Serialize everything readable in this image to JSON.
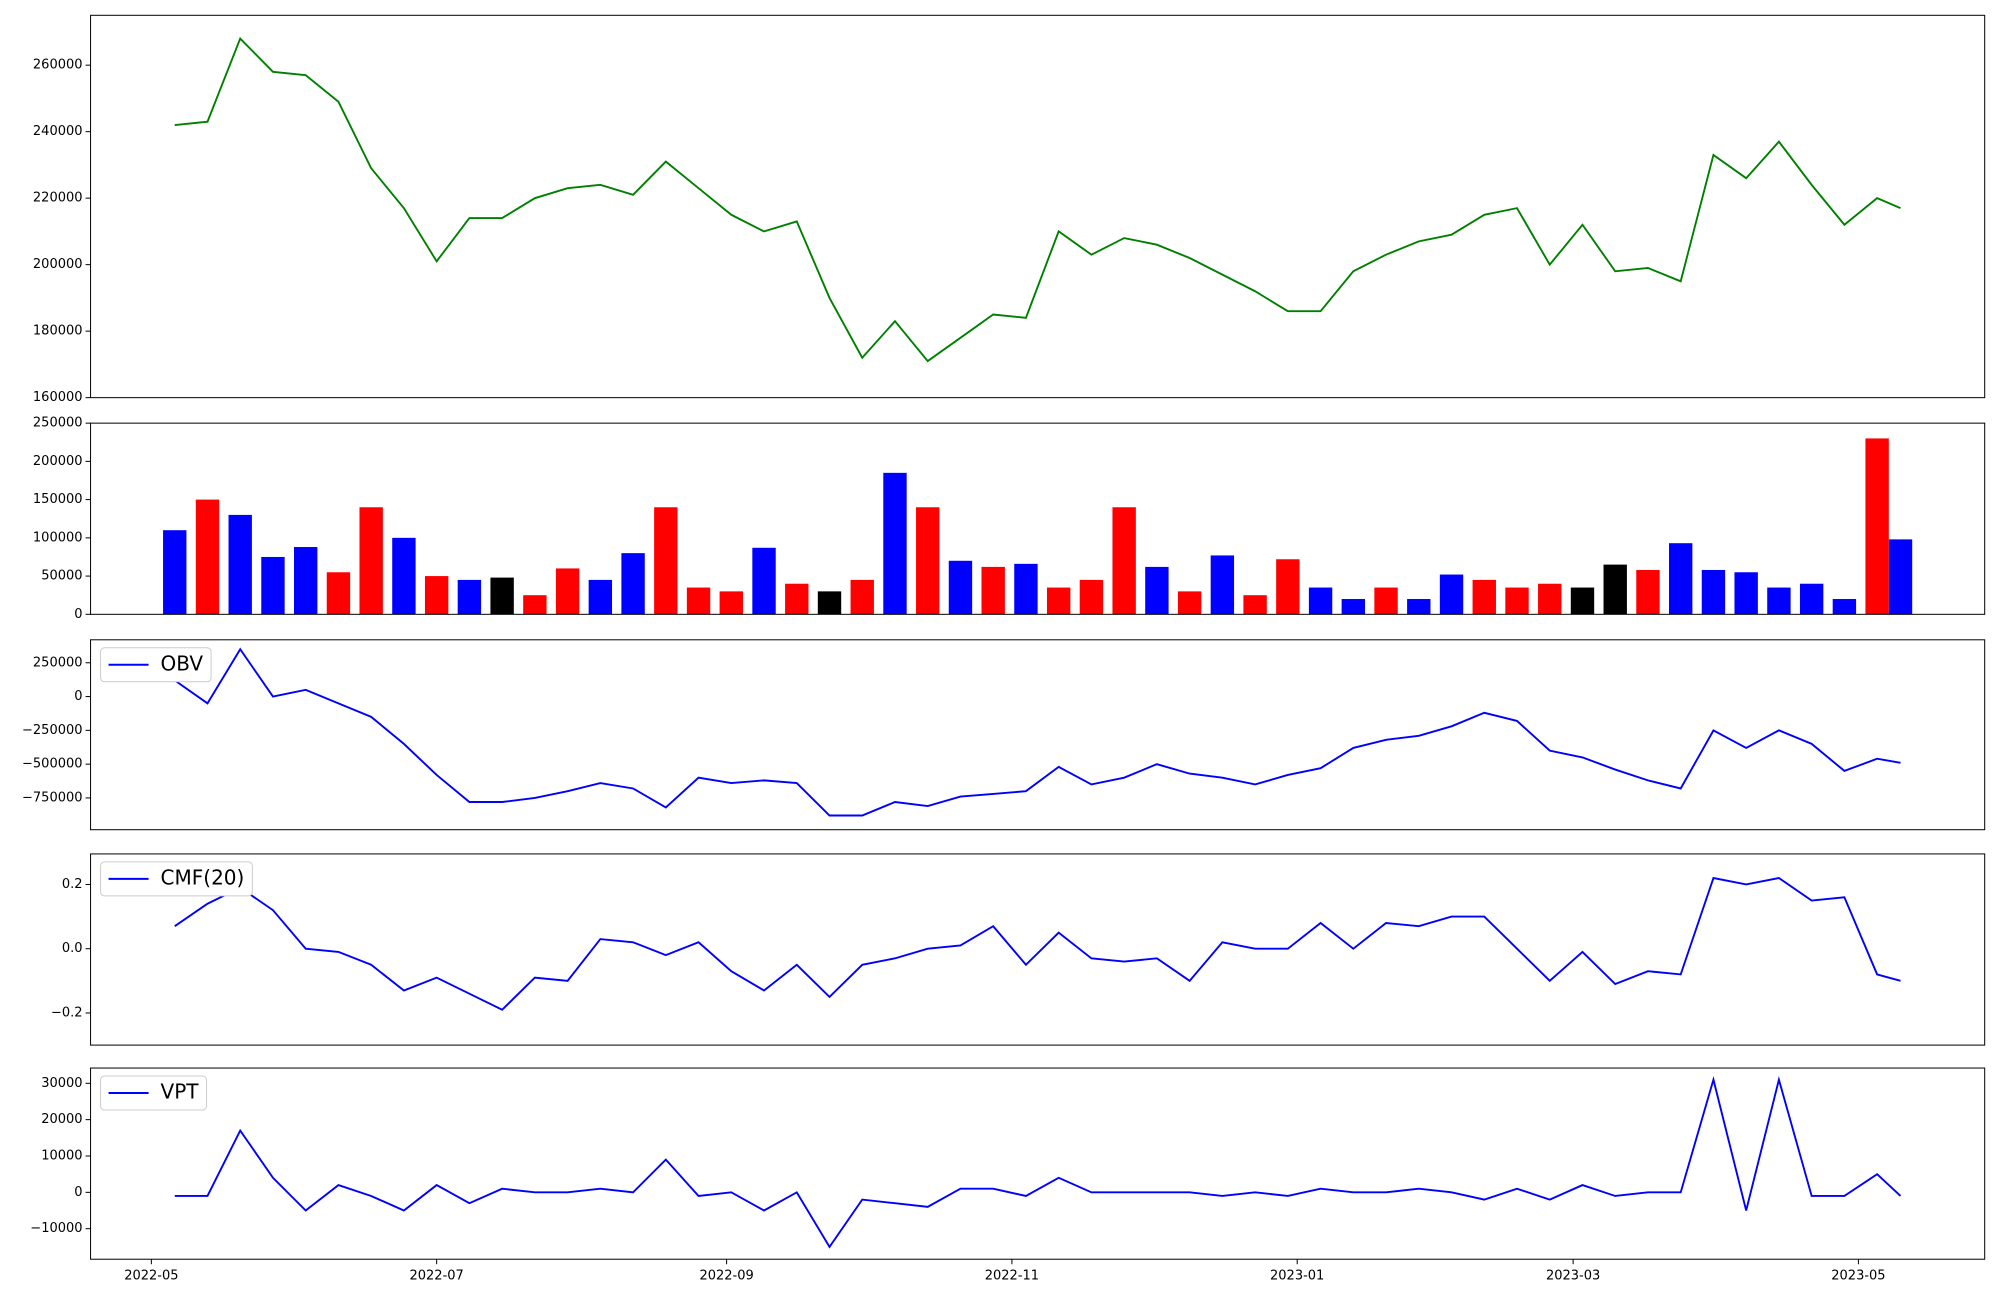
{
  "chart_data": [
    {
      "type": "line",
      "color": "green",
      "x": [
        19118,
        19125,
        19132,
        19139,
        19146,
        19153,
        19160,
        19167,
        19174,
        19181,
        19188,
        19195,
        19202,
        19209,
        19216,
        19223,
        19230,
        19237,
        19244,
        19251,
        19258,
        19265,
        19272,
        19279,
        19286,
        19293,
        19300,
        19307,
        19314,
        19321,
        19328,
        19335,
        19342,
        19349,
        19356,
        19363,
        19370,
        19377,
        19384,
        19391,
        19398,
        19405,
        19412,
        19419,
        19426,
        19433,
        19440,
        19447,
        19454,
        19461,
        19468,
        19475,
        19482,
        19487
      ],
      "values": [
        242000,
        243000,
        268000,
        258000,
        257000,
        249000,
        229000,
        217000,
        201000,
        214000,
        214000,
        220000,
        223000,
        224000,
        221000,
        231000,
        223000,
        215000,
        210000,
        213000,
        190000,
        172000,
        183000,
        171000,
        178000,
        185000,
        184000,
        210000,
        203000,
        208000,
        206000,
        202000,
        197000,
        192000,
        186000,
        186000,
        198000,
        203000,
        207000,
        209000,
        215000,
        217000,
        200000,
        212000,
        198000,
        199000,
        195000,
        233000,
        226000,
        237000,
        224000,
        212000,
        220000,
        217000
      ],
      "xlim": [
        19100,
        19505
      ],
      "ylim": [
        160000,
        275000
      ],
      "yticks": [
        160000,
        180000,
        200000,
        220000,
        240000,
        260000
      ]
    },
    {
      "type": "bar",
      "x": [
        19118,
        19125,
        19132,
        19139,
        19146,
        19153,
        19160,
        19167,
        19174,
        19181,
        19188,
        19195,
        19202,
        19209,
        19216,
        19223,
        19230,
        19237,
        19244,
        19251,
        19258,
        19265,
        19272,
        19279,
        19286,
        19293,
        19300,
        19307,
        19314,
        19321,
        19328,
        19335,
        19342,
        19349,
        19356,
        19363,
        19370,
        19377,
        19384,
        19391,
        19398,
        19405,
        19412,
        19419,
        19426,
        19433,
        19440,
        19447,
        19454,
        19461,
        19468,
        19475,
        19482,
        19487
      ],
      "values": [
        110000,
        150000,
        130000,
        75000,
        88000,
        55000,
        140000,
        100000,
        50000,
        45000,
        48000,
        25000,
        60000,
        45000,
        80000,
        140000,
        35000,
        30000,
        87000,
        40000,
        30000,
        45000,
        185000,
        140000,
        70000,
        62000,
        66000,
        35000,
        45000,
        140000,
        62000,
        30000,
        77000,
        25000,
        72000,
        35000,
        20000,
        35000,
        20000,
        52000,
        45000,
        35000,
        40000,
        35000,
        65000,
        58000,
        93000,
        58000,
        55000,
        35000,
        40000,
        20000,
        230000,
        98000
      ],
      "colors": [
        "blue",
        "red",
        "blue",
        "blue",
        "blue",
        "red",
        "red",
        "blue",
        "red",
        "blue",
        "black",
        "red",
        "red",
        "blue",
        "blue",
        "red",
        "red",
        "red",
        "blue",
        "red",
        "black",
        "red",
        "blue",
        "red",
        "blue",
        "red",
        "blue",
        "red",
        "red",
        "red",
        "blue",
        "red",
        "blue",
        "red",
        "red",
        "blue",
        "blue",
        "red",
        "blue",
        "blue",
        "red",
        "red",
        "red",
        "black",
        "black",
        "red",
        "blue",
        "blue",
        "blue",
        "blue",
        "blue",
        "blue",
        "red",
        "blue"
      ],
      "xlim": [
        19100,
        19505
      ],
      "ylim": [
        0,
        250000
      ],
      "yticks": [
        0,
        50000,
        100000,
        150000,
        200000,
        250000
      ]
    },
    {
      "type": "line",
      "legend": "upper left",
      "x": [
        19118,
        19125,
        19132,
        19139,
        19146,
        19153,
        19160,
        19167,
        19174,
        19181,
        19188,
        19195,
        19202,
        19209,
        19216,
        19223,
        19230,
        19237,
        19244,
        19251,
        19258,
        19265,
        19272,
        19279,
        19286,
        19293,
        19300,
        19307,
        19314,
        19321,
        19328,
        19335,
        19342,
        19349,
        19356,
        19363,
        19370,
        19377,
        19384,
        19391,
        19398,
        19405,
        19412,
        19419,
        19426,
        19433,
        19440,
        19447,
        19454,
        19461,
        19468,
        19475,
        19482,
        19487
      ],
      "series": [
        {
          "name": "OBV",
          "color": "blue",
          "values": [
            120000,
            -50000,
            350000,
            0,
            50000,
            -50000,
            -150000,
            -350000,
            -580000,
            -780000,
            -780000,
            -750000,
            -700000,
            -640000,
            -680000,
            -820000,
            -600000,
            -640000,
            -620000,
            -640000,
            -880000,
            -880000,
            -780000,
            -810000,
            -740000,
            -720000,
            -700000,
            -520000,
            -650000,
            -600000,
            -500000,
            -570000,
            -600000,
            -650000,
            -580000,
            -530000,
            -380000,
            -320000,
            -290000,
            -220000,
            -120000,
            -180000,
            -400000,
            -450000,
            -540000,
            -620000,
            -680000,
            -250000,
            -380000,
            -250000,
            -350000,
            -550000,
            -460000,
            -490000
          ]
        }
      ],
      "xlim": [
        19100,
        19505
      ],
      "ylim": [
        -985000,
        420000
      ],
      "yticks": [
        {
          "value": -750000,
          "label": "−750000"
        },
        {
          "value": -500000,
          "label": "−500000"
        },
        {
          "value": -250000,
          "label": "−250000"
        },
        0,
        250000
      ]
    },
    {
      "type": "line",
      "legend": "upper left",
      "x": [
        19118,
        19125,
        19132,
        19139,
        19146,
        19153,
        19160,
        19167,
        19174,
        19181,
        19188,
        19195,
        19202,
        19209,
        19216,
        19223,
        19230,
        19237,
        19244,
        19251,
        19258,
        19265,
        19272,
        19279,
        19286,
        19293,
        19300,
        19307,
        19314,
        19321,
        19328,
        19335,
        19342,
        19349,
        19356,
        19363,
        19370,
        19377,
        19384,
        19391,
        19398,
        19405,
        19412,
        19419,
        19426,
        19433,
        19440,
        19447,
        19454,
        19461,
        19468,
        19475,
        19482,
        19487
      ],
      "series": [
        {
          "name": "CMF(20)",
          "color": "blue",
          "values": [
            0.07,
            0.14,
            0.19,
            0.12,
            0.0,
            -0.01,
            -0.05,
            -0.13,
            -0.09,
            -0.14,
            -0.19,
            -0.09,
            -0.1,
            0.03,
            0.02,
            -0.02,
            0.02,
            -0.07,
            -0.13,
            -0.05,
            -0.15,
            -0.05,
            -0.03,
            0.0,
            0.01,
            0.07,
            -0.05,
            0.05,
            -0.03,
            -0.04,
            -0.03,
            -0.1,
            0.02,
            0.0,
            0.0,
            0.08,
            0.0,
            0.08,
            0.07,
            0.1,
            0.1,
            0.0,
            -0.1,
            -0.01,
            -0.11,
            -0.07,
            -0.08,
            0.22,
            0.2,
            0.22,
            0.15,
            0.16,
            -0.08,
            -0.1
          ]
        }
      ],
      "xlim": [
        19100,
        19505
      ],
      "ylim": [
        -0.3,
        0.295
      ],
      "yticks": [
        {
          "value": -0.2,
          "label": "−0.2"
        },
        {
          "value": 0,
          "label": "0.0"
        },
        0.2
      ]
    },
    {
      "type": "line",
      "legend": "upper left",
      "x": [
        19118,
        19125,
        19132,
        19139,
        19146,
        19153,
        19160,
        19167,
        19174,
        19181,
        19188,
        19195,
        19202,
        19209,
        19216,
        19223,
        19230,
        19237,
        19244,
        19251,
        19258,
        19265,
        19272,
        19279,
        19286,
        19293,
        19300,
        19307,
        19314,
        19321,
        19328,
        19335,
        19342,
        19349,
        19356,
        19363,
        19370,
        19377,
        19384,
        19391,
        19398,
        19405,
        19412,
        19419,
        19426,
        19433,
        19440,
        19447,
        19454,
        19461,
        19468,
        19475,
        19482,
        19487
      ],
      "series": [
        {
          "name": "VPT",
          "color": "blue",
          "values": [
            -1000,
            -1000,
            17000,
            4000,
            -5000,
            2000,
            -1000,
            -5000,
            2000,
            -3000,
            1000,
            0,
            0,
            1000,
            0,
            9000,
            -1000,
            0,
            -5000,
            0,
            -15000,
            -2000,
            -3000,
            -4000,
            1000,
            1000,
            -1000,
            4000,
            0,
            0,
            0,
            0,
            -1000,
            0,
            -1000,
            1000,
            0,
            0,
            1000,
            0,
            -2000,
            1000,
            -2000,
            2000,
            -1000,
            0,
            0,
            31000,
            -5000,
            31000,
            -1000,
            -1000,
            5000,
            -1000
          ]
        }
      ],
      "xlim": [
        19100,
        19505
      ],
      "ylim": [
        -18400,
        34200
      ],
      "yticks": [
        {
          "value": -10000,
          "label": "−10000"
        },
        0,
        10000,
        20000,
        30000
      ],
      "xticks": [
        {
          "value": 19113,
          "label": "2022-05"
        },
        {
          "value": 19174,
          "label": "2022-07"
        },
        {
          "value": 19236,
          "label": "2022-09"
        },
        {
          "value": 19297,
          "label": "2022-11"
        },
        {
          "value": 19358,
          "label": "2023-01"
        },
        {
          "value": 19417,
          "label": "2023-03"
        },
        {
          "value": 19478,
          "label": "2023-05"
        }
      ]
    }
  ]
}
